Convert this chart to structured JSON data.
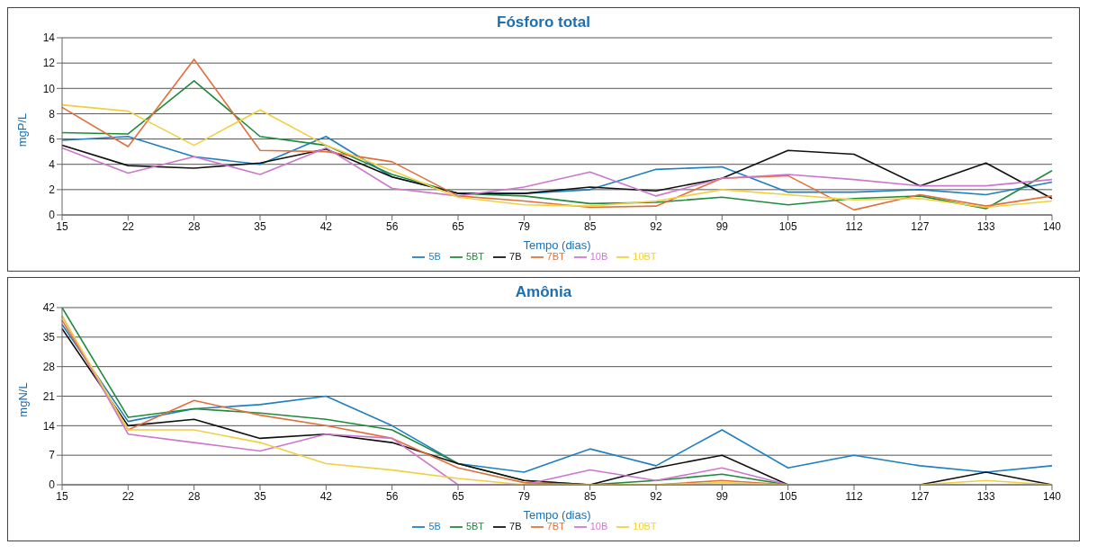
{
  "chart_data": [
    {
      "type": "line",
      "title": "Fósforo total",
      "xlabel": "Tempo (dias)",
      "ylabel": "mgP/L",
      "categories": [
        "15",
        "22",
        "28",
        "35",
        "42",
        "56",
        "65",
        "79",
        "85",
        "92",
        "99",
        "105",
        "112",
        "127",
        "133",
        "140"
      ],
      "ylim": [
        0,
        14
      ],
      "yticks": [
        0,
        2,
        4,
        6,
        8,
        10,
        12,
        14
      ],
      "grid": "y",
      "legend": "bottom",
      "marker": "none",
      "series": [
        {
          "name": "5B",
          "color": "#1f7fc0",
          "values": [
            5.9,
            6.2,
            4.6,
            4.0,
            6.2,
            3.0,
            1.7,
            1.7,
            2.0,
            3.6,
            3.8,
            1.8,
            1.8,
            2.0,
            1.6,
            2.6
          ]
        },
        {
          "name": "5BT",
          "color": "#1e8a3c",
          "values": [
            6.5,
            6.4,
            10.6,
            6.2,
            5.5,
            3.2,
            1.7,
            1.5,
            0.9,
            1.0,
            1.4,
            0.8,
            1.3,
            1.5,
            0.5,
            3.5
          ]
        },
        {
          "name": "7B",
          "color": "#111111",
          "values": [
            5.5,
            3.9,
            3.7,
            4.1,
            5.2,
            3.0,
            1.7,
            1.7,
            2.2,
            1.9,
            2.9,
            5.1,
            4.8,
            2.3,
            4.1,
            1.3
          ]
        },
        {
          "name": "7BT",
          "color": "#e0703a",
          "values": [
            8.5,
            5.4,
            12.3,
            5.1,
            5.0,
            4.2,
            1.5,
            1.1,
            0.6,
            0.7,
            2.9,
            3.1,
            0.4,
            1.6,
            0.7,
            1.5
          ]
        },
        {
          "name": "10B",
          "color": "#cc77cc",
          "values": [
            5.3,
            3.3,
            4.6,
            3.2,
            5.3,
            2.1,
            1.5,
            2.2,
            3.4,
            1.5,
            2.9,
            3.2,
            2.8,
            2.3,
            2.3,
            2.8
          ]
        },
        {
          "name": "10BT",
          "color": "#f0d040",
          "values": [
            8.7,
            8.2,
            5.5,
            8.3,
            5.5,
            3.5,
            1.4,
            0.8,
            0.7,
            1.1,
            2.0,
            1.6,
            1.2,
            1.3,
            0.6,
            1.1
          ]
        }
      ]
    },
    {
      "type": "line",
      "title": "Amônia",
      "xlabel": "Tempo (dias)",
      "ylabel": "mgN/L",
      "categories": [
        "15",
        "22",
        "28",
        "35",
        "42",
        "56",
        "65",
        "79",
        "85",
        "92",
        "99",
        "105",
        "112",
        "127",
        "133",
        "140"
      ],
      "ylim": [
        0,
        42
      ],
      "yticks": [
        0,
        7,
        14,
        21,
        28,
        35,
        42
      ],
      "grid": "y",
      "legend": "bottom",
      "marker": "none",
      "series": [
        {
          "name": "5B",
          "color": "#1f7fc0",
          "values": [
            38,
            15,
            18,
            19,
            21,
            14,
            5,
            3,
            8.5,
            4.5,
            13,
            4,
            7,
            4.5,
            3,
            4.5
          ]
        },
        {
          "name": "5BT",
          "color": "#1e8a3c",
          "values": [
            42,
            16,
            18,
            17,
            15.5,
            13,
            5,
            1,
            0,
            1,
            2.5,
            0,
            null,
            null,
            null,
            null
          ]
        },
        {
          "name": "7B",
          "color": "#111111",
          "values": [
            37,
            14,
            15.5,
            11,
            12,
            10,
            5,
            1,
            0,
            4,
            7,
            0,
            null,
            0,
            3,
            0
          ]
        },
        {
          "name": "7BT",
          "color": "#e0703a",
          "values": [
            39,
            13,
            20,
            16.5,
            14,
            11,
            4,
            0.5,
            0,
            0,
            1,
            0,
            null,
            null,
            null,
            null
          ]
        },
        {
          "name": "10B",
          "color": "#cc77cc",
          "values": [
            40,
            12,
            10,
            8,
            12,
            11,
            0,
            0,
            3.5,
            1,
            4,
            0,
            null,
            null,
            null,
            null
          ]
        },
        {
          "name": "10BT",
          "color": "#f0d040",
          "values": [
            40,
            13,
            13,
            10,
            5,
            3.5,
            1.5,
            0,
            0,
            0,
            0.5,
            0,
            null,
            0,
            1,
            0
          ]
        }
      ]
    }
  ]
}
